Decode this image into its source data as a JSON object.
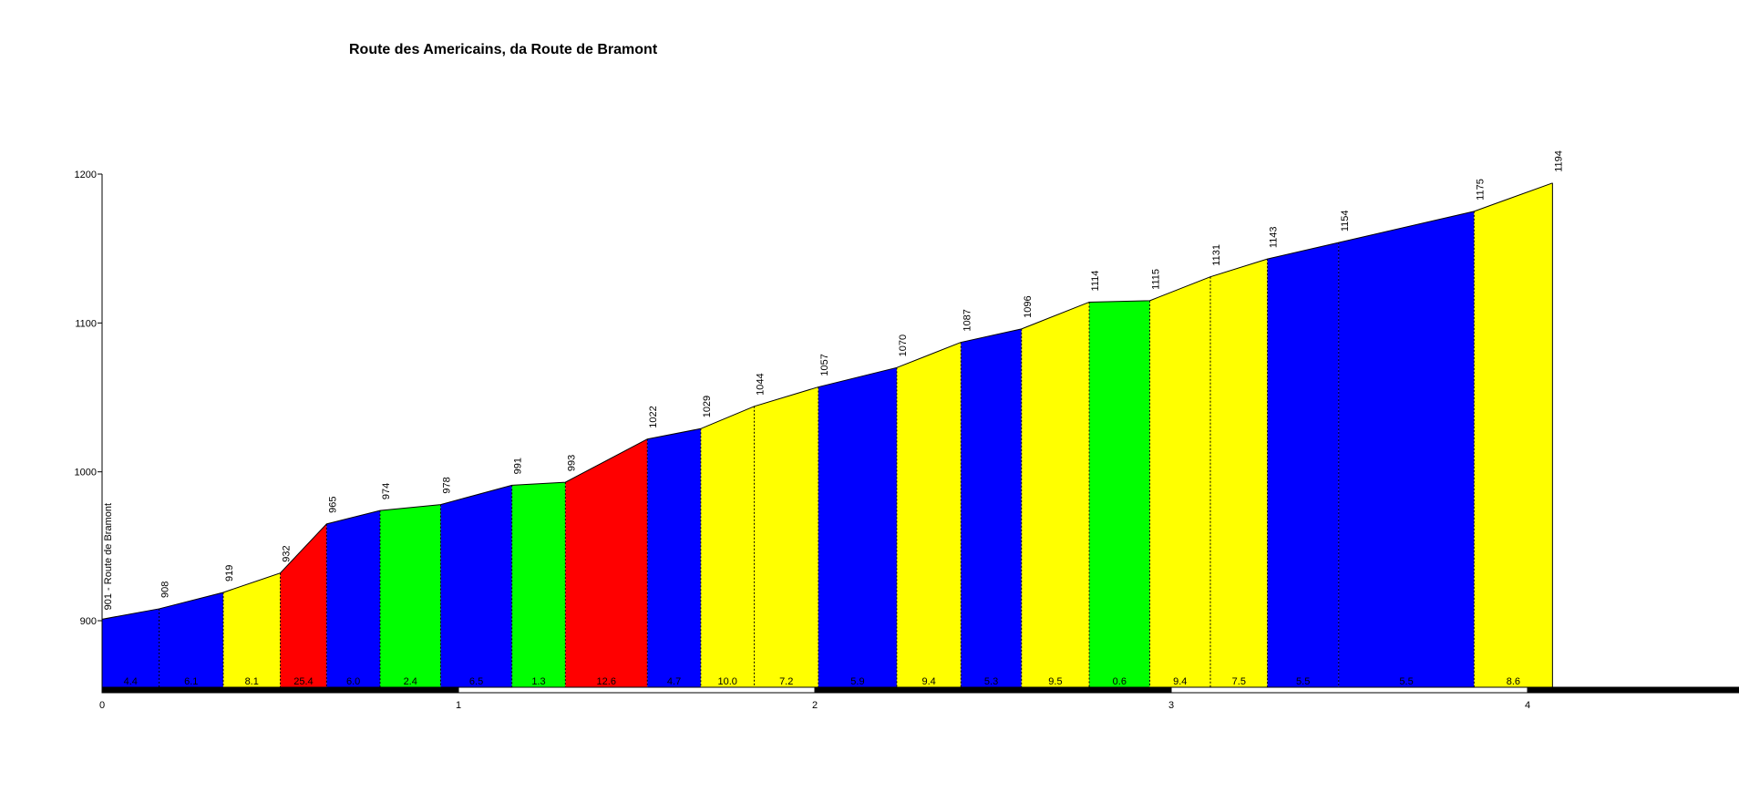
{
  "chart_data": {
    "type": "area",
    "title": "Route des Americains, da Route de Bramont",
    "xlabel": "",
    "ylabel": "",
    "xlim": [
      0,
      4.6
    ],
    "ylim": [
      855,
      1200
    ],
    "y_ticks": [
      900,
      1000,
      1100,
      1200
    ],
    "x_ticks": [
      0,
      1,
      2,
      3,
      4
    ],
    "start_label": "901 - Route de Bramont",
    "colors": {
      "blue": "#0000ff",
      "yellow": "#ffff00",
      "red": "#ff0000",
      "green": "#00ff00"
    },
    "points": [
      {
        "x": 0.0,
        "y": 901
      },
      {
        "x": 0.16,
        "y": 908
      },
      {
        "x": 0.34,
        "y": 919
      },
      {
        "x": 0.5,
        "y": 932
      },
      {
        "x": 0.63,
        "y": 965
      },
      {
        "x": 0.78,
        "y": 974
      },
      {
        "x": 0.95,
        "y": 978
      },
      {
        "x": 1.15,
        "y": 991
      },
      {
        "x": 1.3,
        "y": 993
      },
      {
        "x": 1.53,
        "y": 1022
      },
      {
        "x": 1.68,
        "y": 1029
      },
      {
        "x": 1.83,
        "y": 1044
      },
      {
        "x": 2.01,
        "y": 1057
      },
      {
        "x": 2.23,
        "y": 1070
      },
      {
        "x": 2.41,
        "y": 1087
      },
      {
        "x": 2.58,
        "y": 1096
      },
      {
        "x": 2.77,
        "y": 1114
      },
      {
        "x": 2.94,
        "y": 1115
      },
      {
        "x": 3.11,
        "y": 1131
      },
      {
        "x": 3.27,
        "y": 1143
      },
      {
        "x": 3.47,
        "y": 1154
      },
      {
        "x": 3.85,
        "y": 1175
      },
      {
        "x": 4.07,
        "y": 1194
      }
    ],
    "elevation_labels": [
      "",
      "908",
      "919",
      "932",
      "965",
      "974",
      "978",
      "991",
      "993",
      "1022",
      "1029",
      "1044",
      "1057",
      "1070",
      "1087",
      "1096",
      "1114",
      "1115",
      "1131",
      "1143",
      "1154",
      "1175",
      "1194"
    ],
    "segments": [
      {
        "gradient": "4.4",
        "color": "blue"
      },
      {
        "gradient": "6.1",
        "color": "blue"
      },
      {
        "gradient": "8.1",
        "color": "yellow"
      },
      {
        "gradient": "25.4",
        "color": "red"
      },
      {
        "gradient": "6.0",
        "color": "blue"
      },
      {
        "gradient": "2.4",
        "color": "green"
      },
      {
        "gradient": "6.5",
        "color": "blue"
      },
      {
        "gradient": "1.3",
        "color": "green"
      },
      {
        "gradient": "12.6",
        "color": "red"
      },
      {
        "gradient": "4.7",
        "color": "blue"
      },
      {
        "gradient": "10.0",
        "color": "yellow"
      },
      {
        "gradient": "7.2",
        "color": "yellow"
      },
      {
        "gradient": "5.9",
        "color": "blue"
      },
      {
        "gradient": "9.4",
        "color": "yellow"
      },
      {
        "gradient": "5.3",
        "color": "blue"
      },
      {
        "gradient": "9.5",
        "color": "yellow"
      },
      {
        "gradient": "0.6",
        "color": "green"
      },
      {
        "gradient": "9.4",
        "color": "yellow"
      },
      {
        "gradient": "7.5",
        "color": "yellow"
      },
      {
        "gradient": "5.5",
        "color": "blue"
      },
      {
        "gradient": "5.5",
        "color": "blue"
      },
      {
        "gradient": "8.6",
        "color": "yellow"
      }
    ]
  }
}
